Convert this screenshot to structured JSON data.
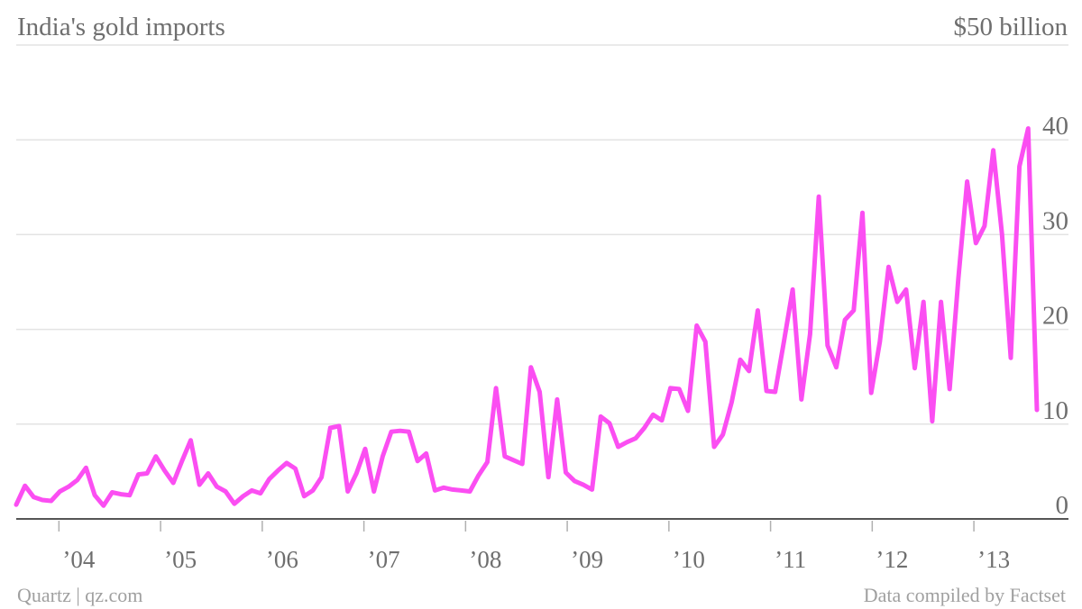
{
  "header": {
    "title": "India's gold imports",
    "unit": "$50 billion"
  },
  "footer": {
    "source": "Quartz | qz.com",
    "credit": "Data compiled by Factset"
  },
  "colors": {
    "line": "#fb4ef2",
    "grid": "#e3e3e3",
    "axis": "#555555",
    "text": "#6e6e6e"
  },
  "chart_data": {
    "type": "line",
    "title": "India's gold imports",
    "xlabel": "",
    "ylabel": "$50 billion",
    "x_tick_labels": [
      "’04",
      "’05",
      "’06",
      "’07",
      "’08",
      "’09",
      "’10",
      "’11",
      "’12",
      "’13"
    ],
    "y_tick_labels": [
      "0",
      "10",
      "20",
      "30",
      "40"
    ],
    "y_tick_values": [
      0,
      10,
      20,
      30,
      40
    ],
    "ylim": [
      0,
      50
    ],
    "grid": true,
    "series": [
      {
        "x_start_year_fraction": 2003.4167,
        "x_step_year_fraction": 0.08333,
        "values": [
          1.5,
          3.5,
          2.3,
          2.0,
          1.9,
          2.9,
          3.4,
          4.1,
          5.4,
          2.5,
          1.4,
          2.8,
          2.6,
          2.5,
          4.7,
          4.8,
          6.6,
          5.1,
          3.8,
          6.1,
          8.3,
          3.6,
          4.8,
          3.4,
          2.9,
          1.6,
          2.4,
          3.0,
          2.7,
          4.2,
          5.1,
          5.9,
          5.3,
          2.4,
          3.0,
          4.4,
          9.6,
          9.8,
          2.9,
          4.8,
          7.4,
          2.9,
          6.6,
          9.2,
          9.3,
          9.2,
          6.1,
          6.9,
          3.0,
          3.3,
          3.1,
          3.0,
          2.9,
          4.6,
          6.0,
          13.8,
          6.6,
          6.2,
          5.8,
          16.0,
          13.4,
          4.4,
          12.6,
          4.9,
          4.0,
          3.6,
          3.1,
          10.8,
          10.1,
          7.6,
          8.1,
          8.5,
          9.6,
          11.0,
          10.4,
          13.8,
          13.7,
          11.4,
          20.4,
          18.7,
          7.6,
          8.9,
          12.3,
          16.8,
          15.6,
          22.0,
          13.5,
          13.4,
          18.7,
          24.2,
          12.6,
          19.5,
          34.0,
          18.3,
          16.0,
          21.0,
          22.0,
          32.3,
          13.3,
          18.7,
          26.6,
          22.9,
          24.2,
          15.9,
          22.9,
          10.3,
          22.9,
          13.7,
          25.4,
          35.6,
          29.1,
          30.9,
          38.9,
          30.0,
          17.0,
          37.2,
          41.2,
          11.5
        ]
      }
    ]
  }
}
